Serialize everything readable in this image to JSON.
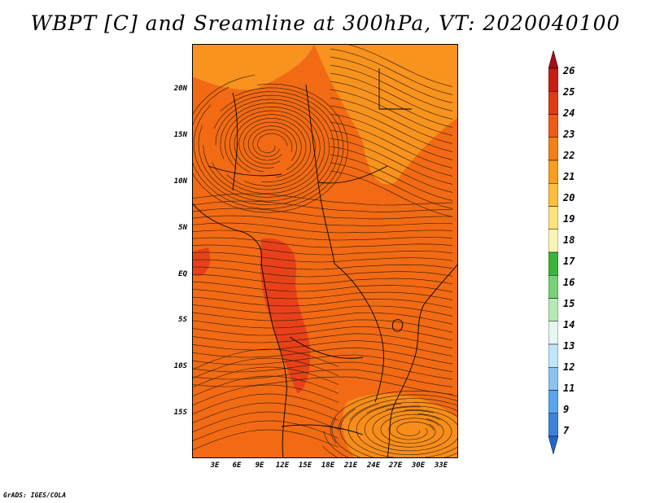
{
  "title": "WBPT [C] and Sreamline at 300hPa, VT: 2020040100",
  "credit": "GrADS: IGES/COLA",
  "lat_labels": [
    "20N",
    "15N",
    "10N",
    "5N",
    "EQ",
    "5S",
    "10S",
    "15S"
  ],
  "lon_labels": [
    "3E",
    "6E",
    "9E",
    "12E",
    "15E",
    "18E",
    "21E",
    "24E",
    "27E",
    "30E",
    "33E"
  ],
  "colorbar": {
    "labels": [
      "26",
      "25",
      "24",
      "23",
      "22",
      "21",
      "20",
      "19",
      "18",
      "17",
      "16",
      "15",
      "14",
      "13",
      "12",
      "11",
      "9",
      "7"
    ],
    "colors": [
      "#a50f15",
      "#c81e14",
      "#e03a14",
      "#f05a14",
      "#f57f14",
      "#f99d1e",
      "#fbbf3c",
      "#fde37a",
      "#fbf5b4",
      "#3cb43c",
      "#78d278",
      "#b4ebb4",
      "#e6f7f0",
      "#bfe6fa",
      "#8cc3f0",
      "#5aa5eb",
      "#3c82dc",
      "#2364d2"
    ]
  },
  "map": {
    "fill_color": "#f26a14",
    "warm_patch_color": "#e8411a",
    "cool_patch_color": "#f7931e",
    "extent": {
      "lon_min": 0,
      "lon_max": 35,
      "lat_min": -20,
      "lat_max": 24
    }
  }
}
